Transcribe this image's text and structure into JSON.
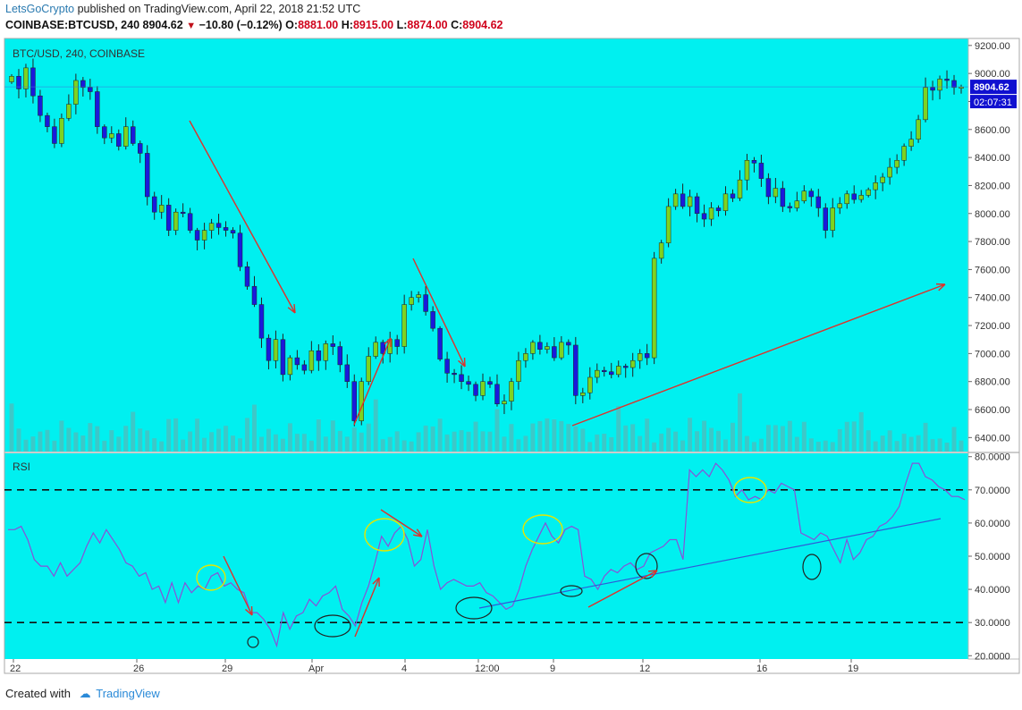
{
  "header": {
    "author": "LetsGoCrypto",
    "published_text": "published on TradingView.com, April 22, 2018 21:52 UTC",
    "symbol": "COINBASE:BTCUSD, 240",
    "last": "8904.62",
    "change": "−10.80 (−0.12%)",
    "open_label": "O:",
    "open": "8881.00",
    "high_label": "H:",
    "high": "8915.00",
    "low_label": "L:",
    "low": "8874.00",
    "close_label": "C:",
    "close": "8904.62"
  },
  "footer": {
    "created_with": "Created with",
    "brand": "TradingView"
  },
  "colors": {
    "background": "#00f0f0",
    "bull_candle": "#7ed321",
    "bear_candle": "#1a1adb",
    "rsi_line": "#8a4fd8",
    "trend_line": "#2f5bd8",
    "arrow": "#e0302a",
    "yellow_circle": "#e6e600",
    "black_circle": "#222222",
    "price_tag": "#1010d0"
  },
  "chart_data": [
    {
      "type": "candlestick",
      "title": "BTC/USD, 240, COINBASE",
      "x_tick_labels": [
        "22",
        "26",
        "29",
        "Apr",
        "4",
        "12:00",
        "9",
        "12",
        "16",
        "19"
      ],
      "y_tick_labels": [
        "6400.00",
        "6600.00",
        "6800.00",
        "7000.00",
        "7200.00",
        "7400.00",
        "7600.00",
        "7800.00",
        "8000.00",
        "8200.00",
        "8400.00",
        "8600.00",
        "8800.00",
        "9000.00",
        "9200.00"
      ],
      "ylim": [
        6300,
        9250
      ],
      "last_price_label": "8904.62",
      "countdown_label": "02:07:31",
      "close_series": [
        8980,
        8890,
        9040,
        8840,
        8700,
        8620,
        8500,
        8680,
        8780,
        8950,
        8900,
        8870,
        8620,
        8540,
        8570,
        8480,
        8620,
        8500,
        8430,
        8120,
        8010,
        8060,
        7880,
        8010,
        8000,
        7880,
        7810,
        7880,
        7930,
        7900,
        7880,
        7860,
        7620,
        7480,
        7350,
        7110,
        6950,
        7100,
        6850,
        6970,
        6920,
        6880,
        7020,
        6950,
        7070,
        7050,
        6920,
        6800,
        6520,
        6800,
        6980,
        7080,
        7000,
        7100,
        7050,
        7350,
        7400,
        7420,
        7300,
        7180,
        6960,
        6860,
        6850,
        6800,
        6780,
        6700,
        6800,
        6780,
        6640,
        6660,
        6800,
        6950,
        7000,
        7080,
        7030,
        7050,
        6970,
        7080,
        7060,
        6700,
        6720,
        6830,
        6880,
        6870,
        6850,
        6910,
        6900,
        6950,
        7000,
        6970,
        7680,
        7790,
        8050,
        8140,
        8050,
        8120,
        8000,
        7960,
        8040,
        8020,
        8140,
        8110,
        8240,
        8380,
        8360,
        8250,
        8120,
        8180,
        8050,
        8040,
        8090,
        8160,
        8120,
        8040,
        7880,
        8040,
        8070,
        8140,
        8100,
        8130,
        8170,
        8220,
        8260,
        8330,
        8380,
        8480,
        8530,
        8670,
        8900,
        8880,
        8960,
        8950,
        8900,
        8904
      ],
      "volume_max_note": "volume bars drawn as histogram",
      "annotations": "red arrows showing trend direction"
    },
    {
      "type": "line",
      "title": "RSI",
      "y_tick_labels": [
        "20.0000",
        "30.0000",
        "40.0000",
        "50.0000",
        "60.0000",
        "70.0000",
        "80.0000"
      ],
      "ylim": [
        19,
        81
      ],
      "overbought": 70,
      "oversold": 30,
      "values": [
        58,
        58,
        59,
        55,
        49,
        47,
        47,
        44,
        48,
        44,
        46,
        48,
        53,
        57,
        54,
        58,
        55,
        52,
        48,
        47,
        44,
        45,
        40,
        41,
        36,
        42,
        36,
        42,
        39,
        41,
        40,
        44,
        45,
        41,
        42,
        40,
        39,
        33,
        33,
        31,
        28,
        23,
        33,
        28,
        32,
        33,
        37,
        35,
        38,
        39,
        41,
        34,
        32,
        29,
        36,
        41,
        48,
        56,
        53,
        57,
        59,
        55,
        47,
        49,
        58,
        47,
        40,
        42,
        43,
        42,
        41,
        41,
        42,
        39,
        38,
        36,
        34,
        35,
        40,
        47,
        52,
        56,
        60,
        56,
        54,
        58,
        59,
        58,
        44,
        43,
        40,
        44,
        46,
        45,
        47,
        48,
        46,
        47,
        51,
        52,
        53,
        55,
        55,
        49,
        76,
        74,
        76,
        74,
        78,
        76,
        73,
        68,
        70,
        67,
        68,
        67,
        70,
        69,
        72,
        71,
        70,
        57,
        56,
        55,
        57,
        56,
        52,
        48,
        55,
        49,
        51,
        55,
        56,
        59,
        60,
        62,
        65,
        72,
        78,
        78,
        74,
        73,
        71,
        70,
        68,
        68,
        67
      ]
    }
  ]
}
